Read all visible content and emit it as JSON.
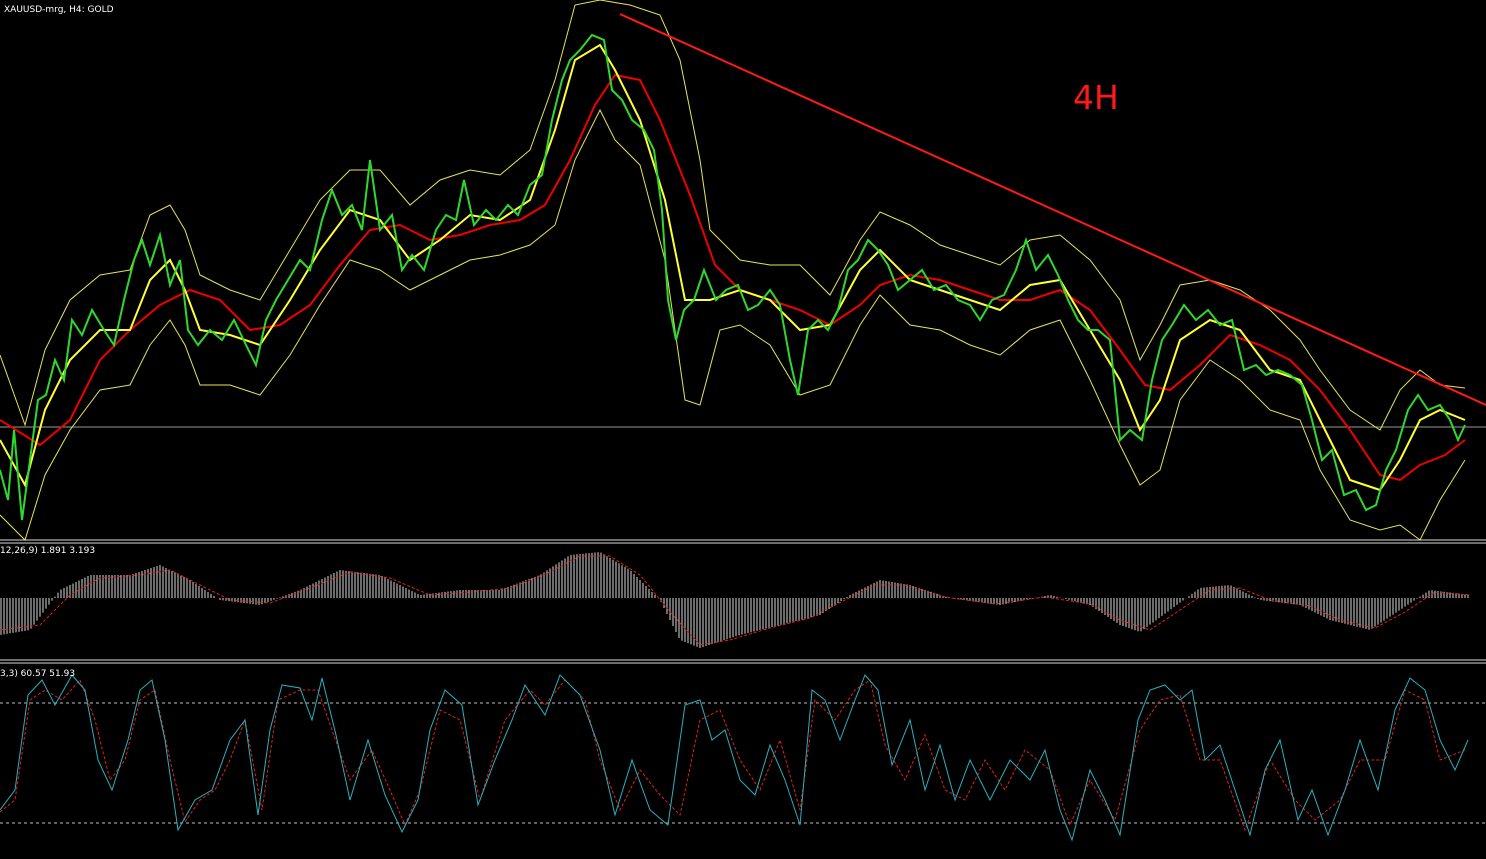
{
  "header": {
    "title": "XAUUSD-mrg, H4:  GOLD"
  },
  "annotation": "4H",
  "panels": [
    {
      "label": "12,26,9) 1.891 3.193"
    },
    {
      "label": "3,3) 60.57 51.93"
    }
  ]
}
